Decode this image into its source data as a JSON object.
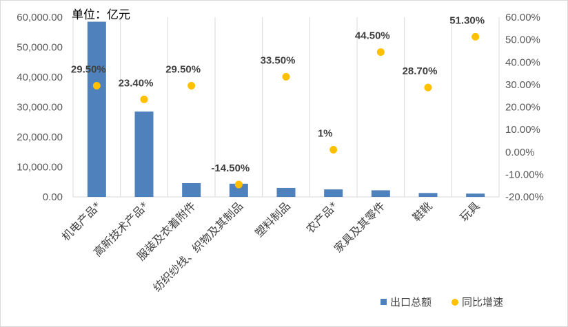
{
  "chart_data": {
    "type": "bar",
    "unit_label": "单位：亿元",
    "categories": [
      "机电产品*",
      "高新技术产品*",
      "服装及衣着附件",
      "纺织纱线、织物及其制品",
      "塑料制品",
      "农产品*",
      "家具及其零件",
      "鞋靴",
      "玩具"
    ],
    "series": [
      {
        "name": "出口总额",
        "kind": "bar",
        "axis": "left",
        "color": "#4f81bd",
        "values": [
          58500,
          28500,
          4600,
          4400,
          3000,
          2500,
          2200,
          1300,
          1100
        ]
      },
      {
        "name": "同比增速",
        "kind": "scatter",
        "axis": "right",
        "color": "#ffc000",
        "values": [
          29.5,
          23.4,
          29.5,
          -14.5,
          33.5,
          1,
          44.5,
          28.7,
          51.3
        ],
        "labels": [
          "29.50%",
          "23.40%",
          "29.50%",
          "-14.50%",
          "33.50%",
          "1%",
          "44.50%",
          "28.70%",
          "51.30%"
        ]
      }
    ],
    "y_left": {
      "min": 0,
      "max": 60000,
      "step": 10000,
      "ticks": [
        "0.00",
        "10,000.00",
        "20,000.00",
        "30,000.00",
        "40,000.00",
        "50,000.00",
        "60,000.00"
      ]
    },
    "y_right": {
      "min": -20,
      "max": 60,
      "step": 10,
      "ticks": [
        "-20.00%",
        "-10.00%",
        "0.00%",
        "10.00%",
        "20.00%",
        "30.00%",
        "40.00%",
        "50.00%",
        "60.00%"
      ]
    },
    "grid": "vertical",
    "legend_position": "bottom-right"
  }
}
